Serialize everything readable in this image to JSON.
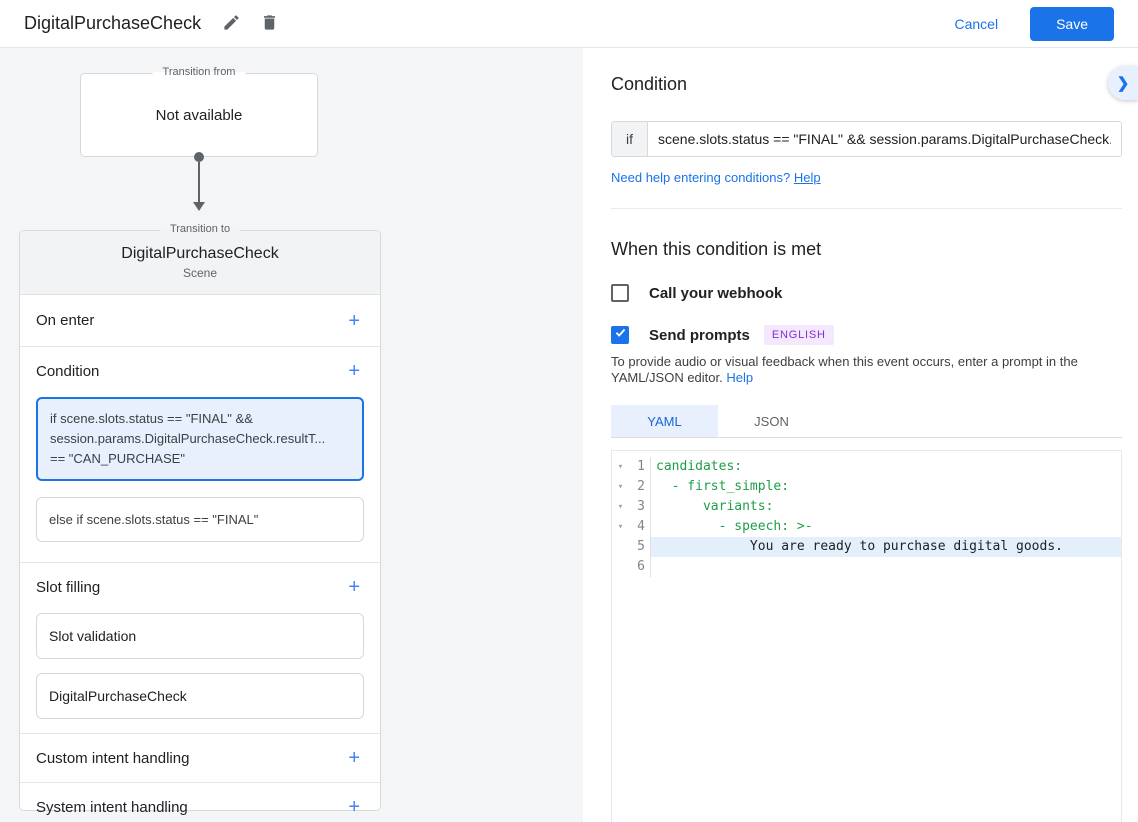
{
  "icons": {
    "plus": "+",
    "chevron_right": "❯"
  },
  "colors": {
    "accent_blue": "#1a73e8",
    "plus_blue": "#4285f4",
    "badge_purple": "#8430ce",
    "badge_bg": "#f3e8fd",
    "selected_card_bg": "#e8f0fe",
    "code_green": "#1e9e46",
    "code_highlight": "#e3f0fb",
    "left_bg": "#f4f5f7"
  },
  "topbar": {
    "title": "DigitalPurchaseCheck",
    "cancel_label": "Cancel",
    "save_label": "Save"
  },
  "flow": {
    "transition_from_label": "Transition from",
    "transition_from_value": "Not available",
    "transition_to_label": "Transition to",
    "scene_name": "DigitalPurchaseCheck",
    "scene_type": "Scene"
  },
  "scene_card": {
    "on_enter_label": "On enter",
    "condition_label": "Condition",
    "condition_cards": [
      {
        "lines": [
          "if scene.slots.status == \"FINAL\" &&",
          "session.params.DigitalPurchaseCheck.resultT...",
          "== \"CAN_PURCHASE\""
        ]
      },
      {
        "lines": [
          "else if scene.slots.status == \"FINAL\""
        ]
      }
    ],
    "slot_filling_label": "Slot filling",
    "slot_cards": [
      "Slot validation",
      "DigitalPurchaseCheck"
    ],
    "custom_intent_label": "Custom intent handling",
    "system_intent_label": "System intent handling"
  },
  "panel": {
    "title": "Condition",
    "if_label": "if",
    "condition_value": "scene.slots.status == \"FINAL\" && session.params.DigitalPurchaseCheck.resu",
    "help_text": "Need help entering conditions? ",
    "help_link": "Help",
    "when_title": "When this condition is met",
    "webhook_label": "Call your webhook",
    "webhook_checked": false,
    "prompts_label": "Send prompts",
    "prompts_checked": true,
    "language_badge": "ENGLISH",
    "prompts_desc": "To provide audio or visual feedback when this event occurs, enter a prompt in the YAML/JSON editor. ",
    "prompts_desc_link": "Help",
    "tabs": [
      {
        "label": "YAML",
        "active": true
      },
      {
        "label": "JSON",
        "active": false
      }
    ]
  },
  "editor": {
    "lines": [
      {
        "num": "1",
        "text": "candidates:",
        "tone": "key",
        "fold": true,
        "highlight": false
      },
      {
        "num": "2",
        "text": "  - first_simple:",
        "tone": "key",
        "fold": true,
        "highlight": false
      },
      {
        "num": "3",
        "text": "      variants:",
        "tone": "key",
        "fold": true,
        "highlight": false
      },
      {
        "num": "4",
        "text": "        - speech: >-",
        "tone": "key",
        "fold": true,
        "highlight": false
      },
      {
        "num": "5",
        "text": "            You are ready to purchase digital goods.",
        "tone": "plain",
        "fold": false,
        "highlight": true
      },
      {
        "num": "6",
        "text": "",
        "tone": "plain",
        "fold": false,
        "highlight": false
      }
    ]
  }
}
